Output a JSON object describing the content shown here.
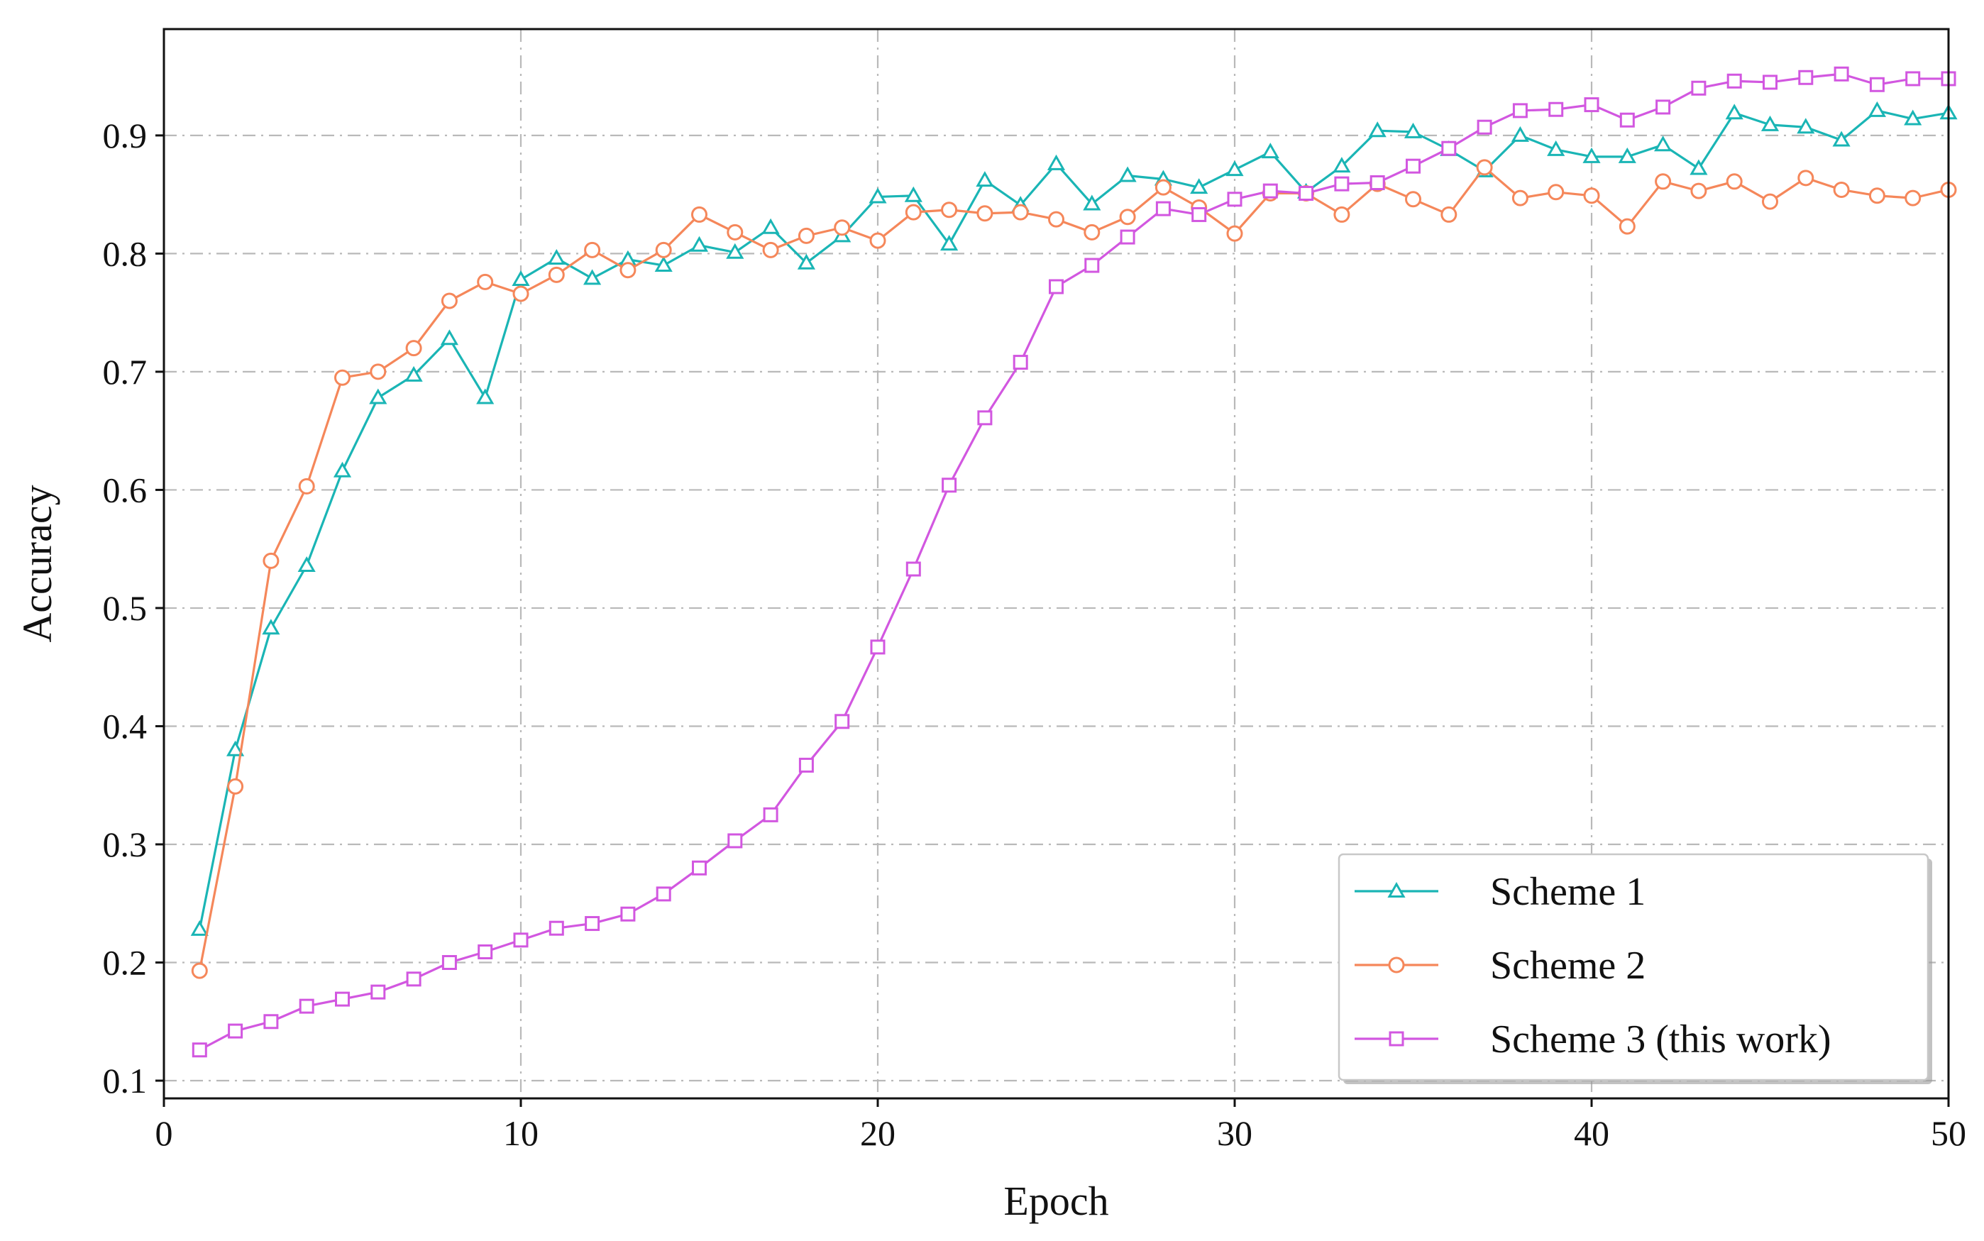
{
  "chart_data": {
    "type": "line",
    "title": "",
    "xlabel": "Epoch",
    "ylabel": "Accuracy",
    "xlim": [
      0,
      50
    ],
    "ylim": [
      0.085,
      0.99
    ],
    "xticks": [
      0,
      10,
      20,
      30,
      40,
      50
    ],
    "yticks": [
      0.1,
      0.2,
      0.3,
      0.4,
      0.5,
      0.6,
      0.7,
      0.8,
      0.9
    ],
    "grid": true,
    "legend_position": "bottom-right",
    "x": [
      1,
      2,
      3,
      4,
      5,
      6,
      7,
      8,
      9,
      10,
      11,
      12,
      13,
      14,
      15,
      16,
      17,
      18,
      19,
      20,
      21,
      22,
      23,
      24,
      25,
      26,
      27,
      28,
      29,
      30,
      31,
      32,
      33,
      34,
      35,
      36,
      37,
      38,
      39,
      40,
      41,
      42,
      43,
      44,
      45,
      46,
      47,
      48,
      49,
      50
    ],
    "series": [
      {
        "name": "Scheme 1",
        "color": "#1ab5b5",
        "marker": "triangle",
        "values": [
          0.228,
          0.38,
          0.483,
          0.536,
          0.616,
          0.678,
          0.697,
          0.728,
          0.678,
          0.778,
          0.796,
          0.779,
          0.795,
          0.79,
          0.807,
          0.801,
          0.822,
          0.792,
          0.815,
          0.848,
          0.849,
          0.808,
          0.862,
          0.841,
          0.876,
          0.842,
          0.866,
          0.863,
          0.856,
          0.871,
          0.886,
          0.852,
          0.874,
          0.904,
          0.903,
          0.888,
          0.87,
          0.9,
          0.888,
          0.882,
          0.882,
          0.892,
          0.872,
          0.919,
          0.909,
          0.907,
          0.896,
          0.921,
          0.914,
          0.919
        ]
      },
      {
        "name": "Scheme 2",
        "color": "#f5875a",
        "marker": "circle",
        "values": [
          0.193,
          0.349,
          0.54,
          0.603,
          0.695,
          0.7,
          0.72,
          0.76,
          0.776,
          0.766,
          0.782,
          0.803,
          0.786,
          0.803,
          0.833,
          0.818,
          0.803,
          0.815,
          0.822,
          0.811,
          0.835,
          0.837,
          0.834,
          0.835,
          0.829,
          0.818,
          0.831,
          0.856,
          0.839,
          0.817,
          0.851,
          0.851,
          0.833,
          0.859,
          0.846,
          0.833,
          0.873,
          0.847,
          0.852,
          0.849,
          0.823,
          0.861,
          0.853,
          0.861,
          0.844,
          0.864,
          0.854,
          0.849,
          0.847,
          0.854
        ]
      },
      {
        "name": "Scheme 3 (this work)",
        "color": "#d257e0",
        "marker": "square",
        "values": [
          0.126,
          0.142,
          0.15,
          0.163,
          0.169,
          0.175,
          0.186,
          0.2,
          0.209,
          0.219,
          0.229,
          0.233,
          0.241,
          0.258,
          0.28,
          0.303,
          0.325,
          0.367,
          0.404,
          0.467,
          0.533,
          0.604,
          0.661,
          0.708,
          0.772,
          0.79,
          0.814,
          0.838,
          0.833,
          0.846,
          0.853,
          0.851,
          0.859,
          0.86,
          0.874,
          0.889,
          0.907,
          0.921,
          0.922,
          0.926,
          0.913,
          0.924,
          0.94,
          0.946,
          0.945,
          0.949,
          0.952,
          0.943,
          0.948,
          0.948
        ]
      }
    ]
  }
}
